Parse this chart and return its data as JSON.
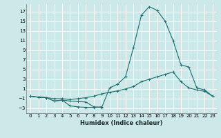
{
  "xlabel": "Humidex (Indice chaleur)",
  "background_color": "#cce8e8",
  "grid_color": "#ffffff",
  "line_color": "#1a6e6e",
  "xlim": [
    -0.5,
    23.5
  ],
  "ylim": [
    -4.0,
    18.5
  ],
  "xticks": [
    0,
    1,
    2,
    3,
    4,
    5,
    6,
    7,
    8,
    9,
    10,
    11,
    12,
    13,
    14,
    15,
    16,
    17,
    18,
    19,
    20,
    21,
    22,
    23
  ],
  "yticks": [
    -3,
    -1,
    1,
    3,
    5,
    7,
    9,
    11,
    13,
    15,
    17
  ],
  "line1_x": [
    0,
    1,
    2,
    3,
    4,
    5,
    6,
    7,
    8,
    9
  ],
  "line1_y": [
    -0.5,
    -0.7,
    -0.8,
    -1.5,
    -1.3,
    -2.5,
    -2.7,
    -2.8,
    -2.8,
    -2.7
  ],
  "line2_x": [
    0,
    1,
    2,
    3,
    4,
    5,
    6,
    7,
    8,
    9,
    10,
    11,
    12,
    13,
    14,
    15,
    16,
    17,
    18,
    19,
    20,
    21,
    22,
    23
  ],
  "line2_y": [
    -0.5,
    -0.7,
    -0.8,
    -1.5,
    -1.3,
    -1.5,
    -1.6,
    -1.7,
    -2.7,
    -2.8,
    1.2,
    2.0,
    3.5,
    9.5,
    16.2,
    18.0,
    17.2,
    15.0,
    11.0,
    6.0,
    5.5,
    1.2,
    0.8,
    -0.5
  ],
  "line3_x": [
    0,
    1,
    2,
    3,
    4,
    5,
    6,
    7,
    8,
    9,
    10,
    11,
    12,
    13,
    14,
    15,
    16,
    17,
    18,
    19,
    20,
    21,
    22,
    23
  ],
  "line3_y": [
    -0.5,
    -0.7,
    -0.8,
    -1.0,
    -1.0,
    -1.2,
    -1.0,
    -0.8,
    -0.5,
    0.0,
    0.3,
    0.6,
    1.0,
    1.5,
    2.5,
    3.0,
    3.5,
    4.0,
    4.5,
    2.5,
    1.2,
    0.8,
    0.5,
    -0.5
  ],
  "tick_fontsize": 5.0,
  "xlabel_fontsize": 6.0
}
